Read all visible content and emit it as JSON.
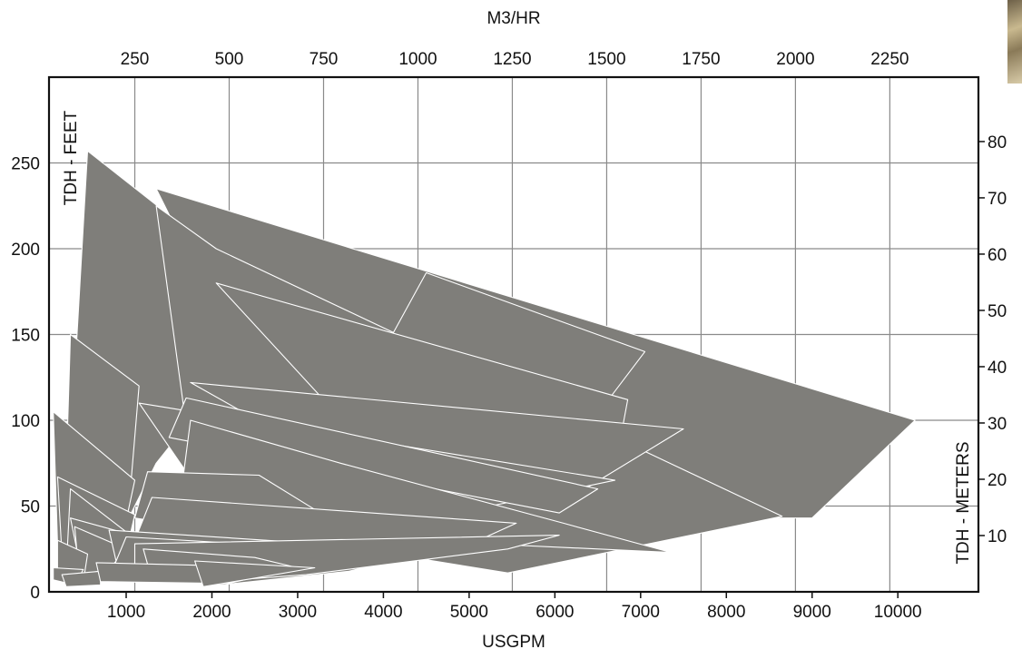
{
  "chart_data": {
    "type": "area",
    "title": "",
    "xlabel": "USGPM",
    "x2label": "M3/HR",
    "ylabel": "TDH - FEET",
    "y2label": "TDH - METERS",
    "x_ticks": [
      "1000",
      "2000",
      "3000",
      "4000",
      "5000",
      "6000",
      "7000",
      "8000",
      "9000",
      "10000"
    ],
    "x_tick_values": [
      1000,
      2000,
      3000,
      4000,
      5000,
      6000,
      7000,
      8000,
      9000,
      10000
    ],
    "xlim": [
      100,
      10940
    ],
    "x2_ticks": [
      "250",
      "500",
      "750",
      "1000",
      "1250",
      "1500",
      "1750",
      "2000",
      "2250"
    ],
    "x2_tick_values": [
      250,
      500,
      750,
      1000,
      1250,
      1500,
      1750,
      2000,
      2250
    ],
    "y_ticks": [
      "0",
      "50",
      "100",
      "150",
      "200",
      "250"
    ],
    "y_tick_values": [
      0,
      50,
      100,
      150,
      200,
      250
    ],
    "ylim": [
      0,
      300
    ],
    "y2_ticks": [
      "10",
      "20",
      "30",
      "40",
      "50",
      "60",
      "70",
      "80"
    ],
    "y2_tick_values": [
      10,
      20,
      30,
      40,
      50,
      60,
      70,
      80
    ],
    "y2lim": [
      0,
      91.44
    ],
    "grid": true,
    "fill_color": "#7f7e7a",
    "edge_color": "#ffffff",
    "series": [
      {
        "points": [
          [
            1350,
            235
          ],
          [
            10200,
            100
          ],
          [
            9000,
            43
          ],
          [
            5050,
            43
          ],
          [
            3800,
            100
          ],
          [
            1800,
            140
          ],
          [
            1700,
            200
          ]
        ]
      },
      {
        "points": [
          [
            550,
            257
          ],
          [
            2000,
            200
          ],
          [
            1750,
            100
          ],
          [
            1350,
            75
          ],
          [
            1000,
            40
          ],
          [
            300,
            40
          ]
        ]
      },
      {
        "points": [
          [
            1350,
            225
          ],
          [
            2050,
            200
          ],
          [
            8650,
            44
          ],
          [
            5450,
            11
          ],
          [
            3100,
            30
          ],
          [
            1800,
            60
          ]
        ]
      },
      {
        "points": [
          [
            4500,
            186
          ],
          [
            7050,
            140
          ],
          [
            5700,
            51
          ],
          [
            3600,
            104
          ]
        ]
      },
      {
        "points": [
          [
            2050,
            180
          ],
          [
            6850,
            112
          ],
          [
            6700,
            72
          ],
          [
            3800,
            85
          ]
        ]
      },
      {
        "points": [
          [
            1750,
            122
          ],
          [
            7500,
            95
          ],
          [
            6350,
            60
          ],
          [
            3600,
            70
          ]
        ]
      },
      {
        "points": [
          [
            1150,
            110
          ],
          [
            6700,
            65
          ],
          [
            5250,
            50
          ],
          [
            1700,
            70
          ]
        ]
      },
      {
        "points": [
          [
            1700,
            113
          ],
          [
            6500,
            60
          ],
          [
            6050,
            46
          ],
          [
            1500,
            90
          ]
        ]
      },
      {
        "points": [
          [
            1750,
            100
          ],
          [
            3500,
            75
          ],
          [
            6100,
            40
          ],
          [
            7350,
            23
          ],
          [
            3000,
            33
          ],
          [
            1600,
            42
          ]
        ]
      },
      {
        "points": [
          [
            1250,
            70
          ],
          [
            2550,
            68
          ],
          [
            3200,
            48
          ],
          [
            2100,
            35
          ],
          [
            1100,
            43
          ]
        ]
      },
      {
        "points": [
          [
            1300,
            55
          ],
          [
            5550,
            40
          ],
          [
            4800,
            23
          ],
          [
            2600,
            30
          ],
          [
            1100,
            30
          ]
        ]
      },
      {
        "points": [
          [
            350,
            150
          ],
          [
            1150,
            120
          ],
          [
            1050,
            60
          ],
          [
            600,
            33
          ],
          [
            280,
            37
          ]
        ]
      },
      {
        "points": [
          [
            150,
            105
          ],
          [
            1100,
            65
          ],
          [
            950,
            30
          ],
          [
            400,
            22
          ],
          [
            200,
            28
          ]
        ]
      },
      {
        "points": [
          [
            200,
            67
          ],
          [
            1100,
            45
          ],
          [
            1000,
            23
          ],
          [
            600,
            16
          ],
          [
            250,
            22
          ]
        ]
      },
      {
        "points": [
          [
            350,
            60
          ],
          [
            1050,
            33
          ],
          [
            900,
            15
          ],
          [
            300,
            12
          ]
        ]
      },
      {
        "points": [
          [
            350,
            43
          ],
          [
            1800,
            23
          ],
          [
            1200,
            10
          ],
          [
            500,
            6
          ]
        ]
      },
      {
        "points": [
          [
            400,
            38
          ],
          [
            1000,
            25
          ],
          [
            800,
            13
          ],
          [
            450,
            10
          ]
        ]
      },
      {
        "points": [
          [
            800,
            36
          ],
          [
            4200,
            25
          ],
          [
            4000,
            16
          ],
          [
            2000,
            8
          ],
          [
            900,
            14
          ]
        ]
      },
      {
        "points": [
          [
            1000,
            32
          ],
          [
            4400,
            22
          ],
          [
            3600,
            12
          ],
          [
            2100,
            4
          ],
          [
            800,
            8
          ]
        ]
      },
      {
        "points": [
          [
            1100,
            28
          ],
          [
            6050,
            33
          ],
          [
            5450,
            25
          ],
          [
            3100,
            10
          ],
          [
            2000,
            6
          ],
          [
            1100,
            10
          ]
        ]
      },
      {
        "points": [
          [
            1200,
            25
          ],
          [
            2500,
            20
          ],
          [
            3000,
            14
          ],
          [
            2200,
            5
          ],
          [
            1300,
            7
          ]
        ]
      },
      {
        "points": [
          [
            200,
            30
          ],
          [
            550,
            22
          ],
          [
            500,
            6
          ],
          [
            200,
            8
          ]
        ]
      },
      {
        "points": [
          [
            150,
            14
          ],
          [
            500,
            13
          ],
          [
            400,
            4
          ],
          [
            150,
            7
          ]
        ]
      },
      {
        "points": [
          [
            250,
            10
          ],
          [
            700,
            12
          ],
          [
            700,
            4
          ],
          [
            300,
            3
          ]
        ]
      },
      {
        "points": [
          [
            650,
            17
          ],
          [
            2200,
            15
          ],
          [
            2000,
            5
          ],
          [
            700,
            6
          ]
        ]
      },
      {
        "points": [
          [
            1800,
            18
          ],
          [
            3200,
            14
          ],
          [
            2500,
            8
          ],
          [
            1900,
            3
          ]
        ]
      }
    ]
  }
}
